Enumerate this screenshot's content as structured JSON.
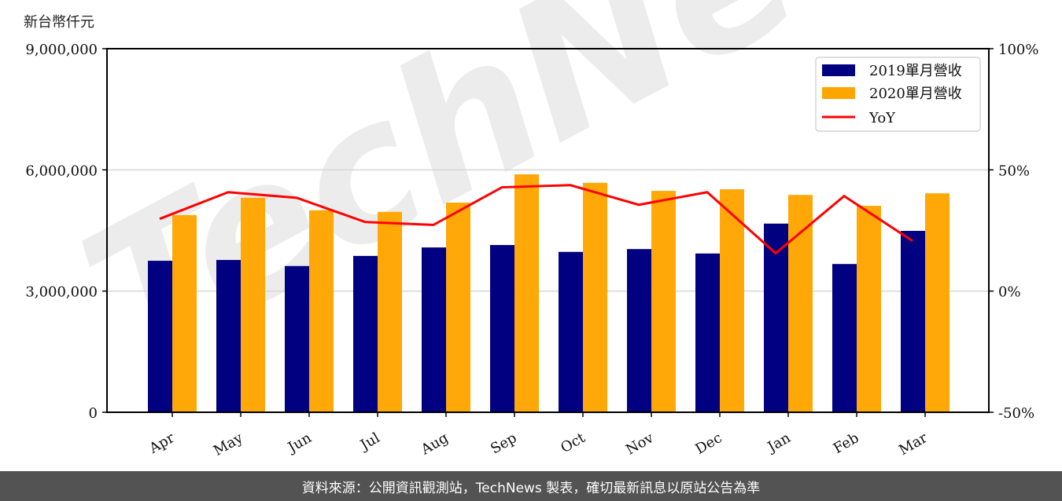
{
  "unit_label": "新台幣仟元",
  "footer_text": "資料來源：公開資訊觀測站，TechNews 製表，確切最新訊息以原站公告為準",
  "watermark": "TechNews",
  "colors": {
    "series_2019": "#000080",
    "series_2020": "#FFA500",
    "yoy": "#FF0000",
    "grid": "#d9d9d9",
    "footer_bg": "#535353"
  },
  "chart_data": {
    "type": "bar",
    "title": "",
    "xlabel": "",
    "ylabel": "新台幣仟元",
    "y2label": "",
    "categories": [
      "Apr",
      "May",
      "Jun",
      "Jul",
      "Aug",
      "Sep",
      "Oct",
      "Nov",
      "Dec",
      "Jan",
      "Feb",
      "Mar"
    ],
    "series": [
      {
        "name": "2019單月營收",
        "type": "bar",
        "axis": "left",
        "color": "#000080",
        "values": [
          3750000,
          3770000,
          3620000,
          3870000,
          4080000,
          4140000,
          3970000,
          4040000,
          3930000,
          4670000,
          3670000,
          4490000
        ]
      },
      {
        "name": "2020單月營收",
        "type": "bar",
        "axis": "left",
        "color": "#FFA500",
        "values": [
          4880000,
          5310000,
          5000000,
          4960000,
          5190000,
          5890000,
          5680000,
          5480000,
          5520000,
          5380000,
          5110000,
          5420000
        ]
      },
      {
        "name": "YoY",
        "type": "line",
        "axis": "right",
        "color": "#FF0000",
        "values": [
          29.8,
          40.8,
          38.5,
          28.5,
          27.3,
          42.8,
          43.7,
          35.6,
          40.8,
          15.6,
          39.2,
          20.7
        ]
      }
    ],
    "ylim": [
      0,
      9000000
    ],
    "y2lim": [
      -50,
      100
    ],
    "yticks": [
      "0",
      "3,000,000",
      "6,000,000",
      "9,000,000"
    ],
    "ytick_values": [
      0,
      3000000,
      6000000,
      9000000
    ],
    "y2ticks": [
      "-50%",
      "0%",
      "50%",
      "100%"
    ],
    "y2tick_values": [
      -50,
      0,
      50,
      100
    ],
    "grid": true,
    "legend_position": "upper right",
    "legend": [
      "2019單月營收",
      "2020單月營收",
      "YoY"
    ]
  }
}
